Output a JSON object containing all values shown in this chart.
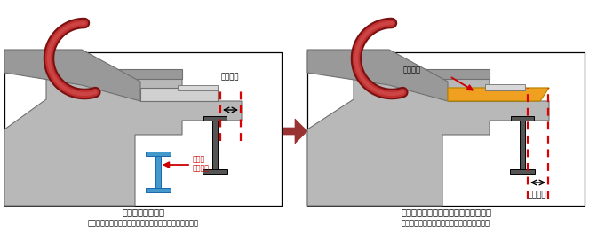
{
  "fig_width": 6.63,
  "fig_height": 2.64,
  "dpi": 100,
  "bg_color": "#ffffff",
  "gray_dark": "#707070",
  "gray_mid": "#999999",
  "gray_light": "#b8b8b8",
  "gray_lighter": "#d0d0d0",
  "red_color": "#cc0000",
  "blue_color": "#4499cc",
  "orange_color": "#f0a020",
  "dashed_red": "#dd0000",
  "dark_gray2": "#505050",
  "ibeam_color": "#555555",
  "arrow_body": "#993333",
  "caption1": "図３．従来の工法",
  "caption2": "（エスカレーターの下に建物の追加はりを設ける工法）",
  "caption3": "図４．今回開発した技術を用いた工法",
  "caption4": "（エスカレーターに延長はりを設ける工法）",
  "label_kakari": "かかり代",
  "label_tatemono": "建物の",
  "label_tsuikahari": "追加はり",
  "label_enchouhari": "延長はり"
}
